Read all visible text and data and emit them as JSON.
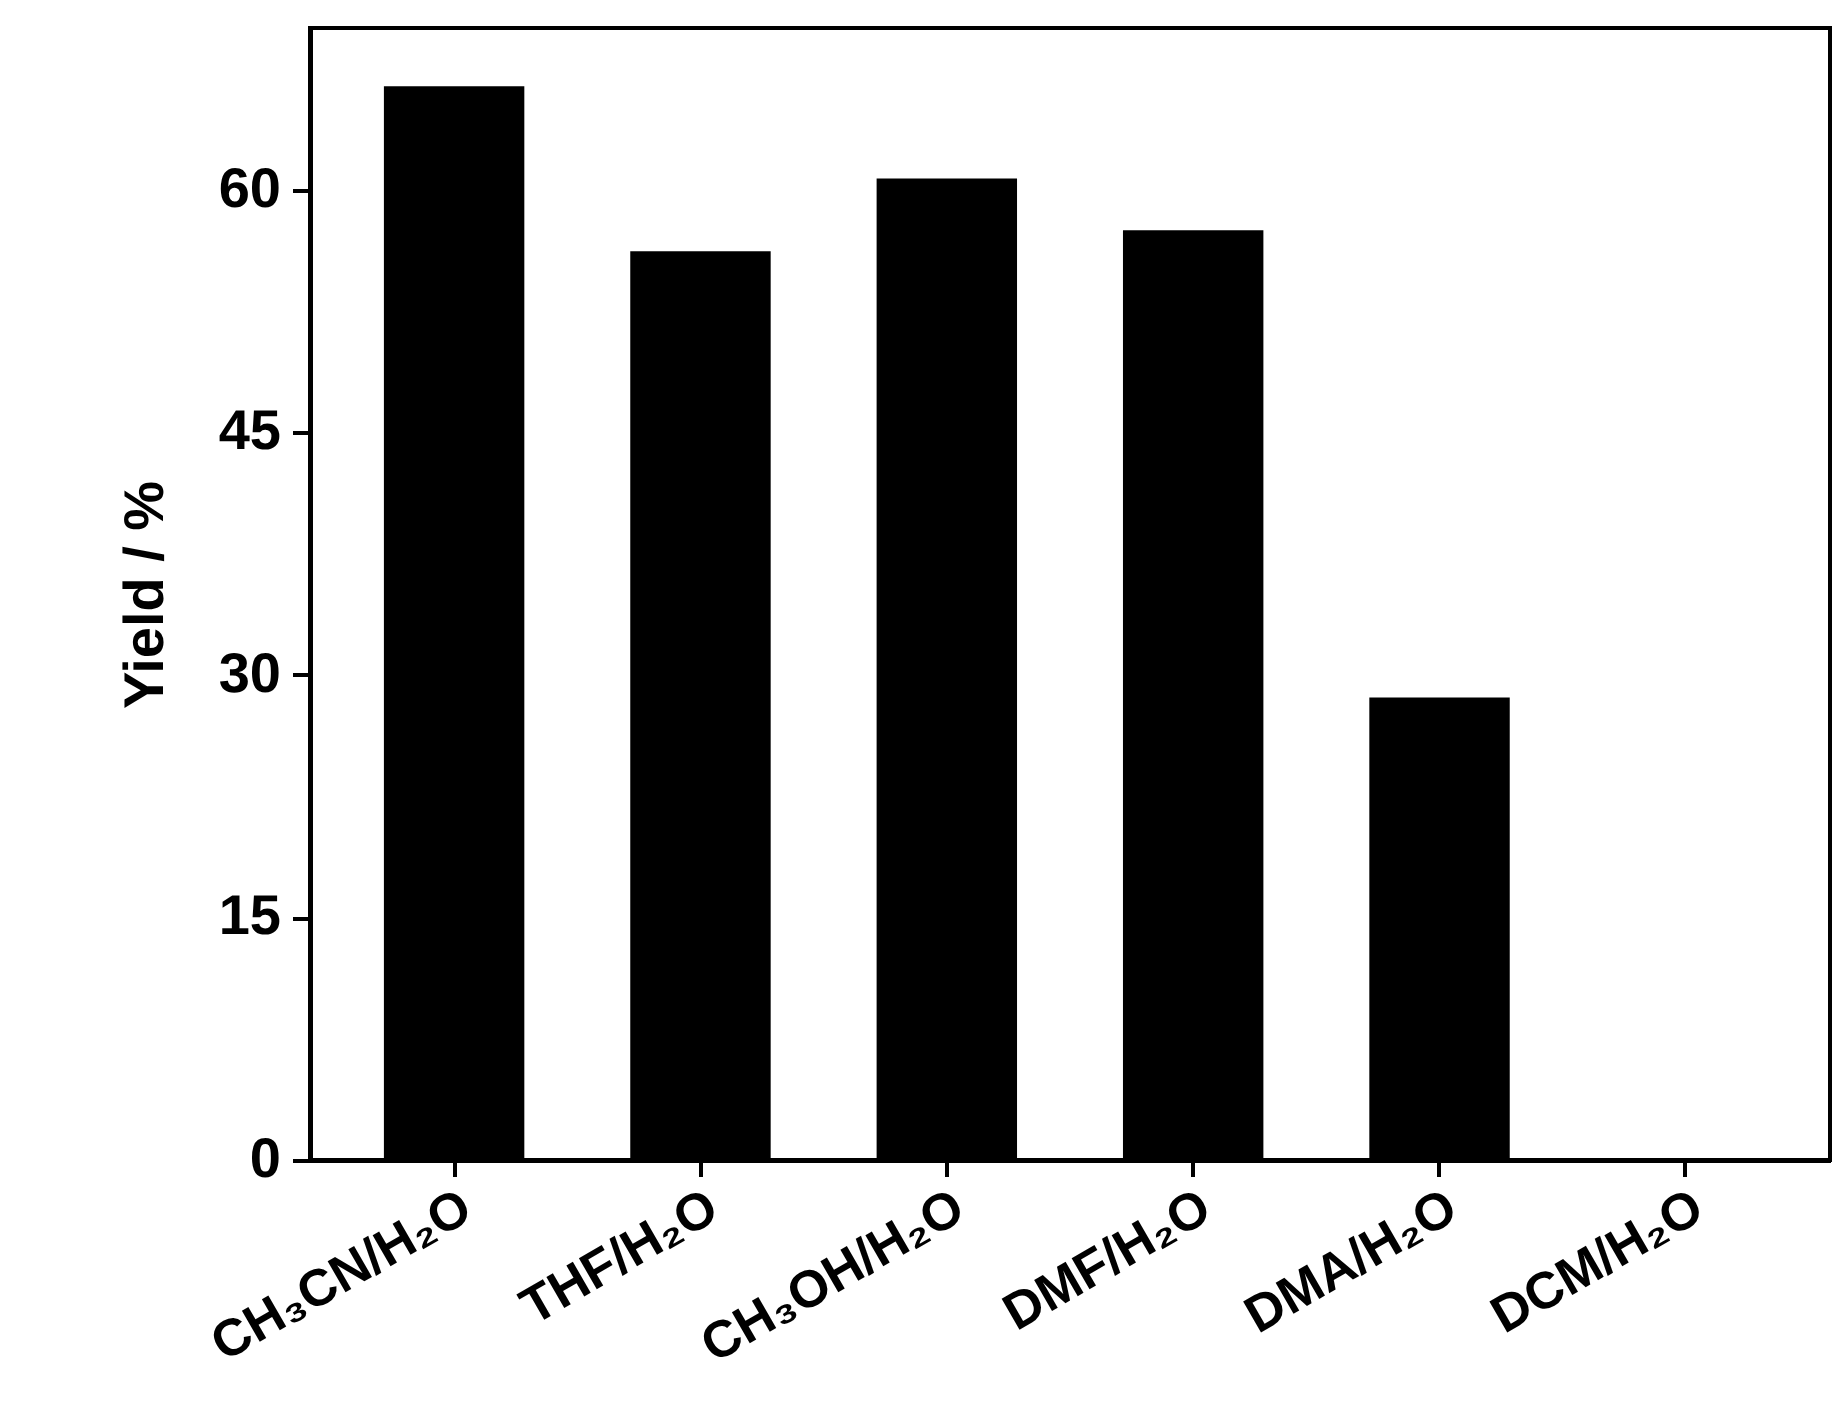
{
  "chart_data": {
    "type": "bar",
    "ylabel": "Yield / %",
    "categories": [
      "CH₃CN/H₂O",
      "THF/H₂O",
      "CH₃OH/H₂O",
      "DMF/H₂O",
      "DMA/H₂O",
      "DCM/H₂O"
    ],
    "values": [
      66.4,
      56.2,
      60.7,
      57.5,
      28.6,
      0
    ],
    "color": "#000000",
    "ylim": [
      0,
      70
    ],
    "yticks": [
      0,
      15,
      30,
      45,
      60
    ],
    "grid": false
  }
}
